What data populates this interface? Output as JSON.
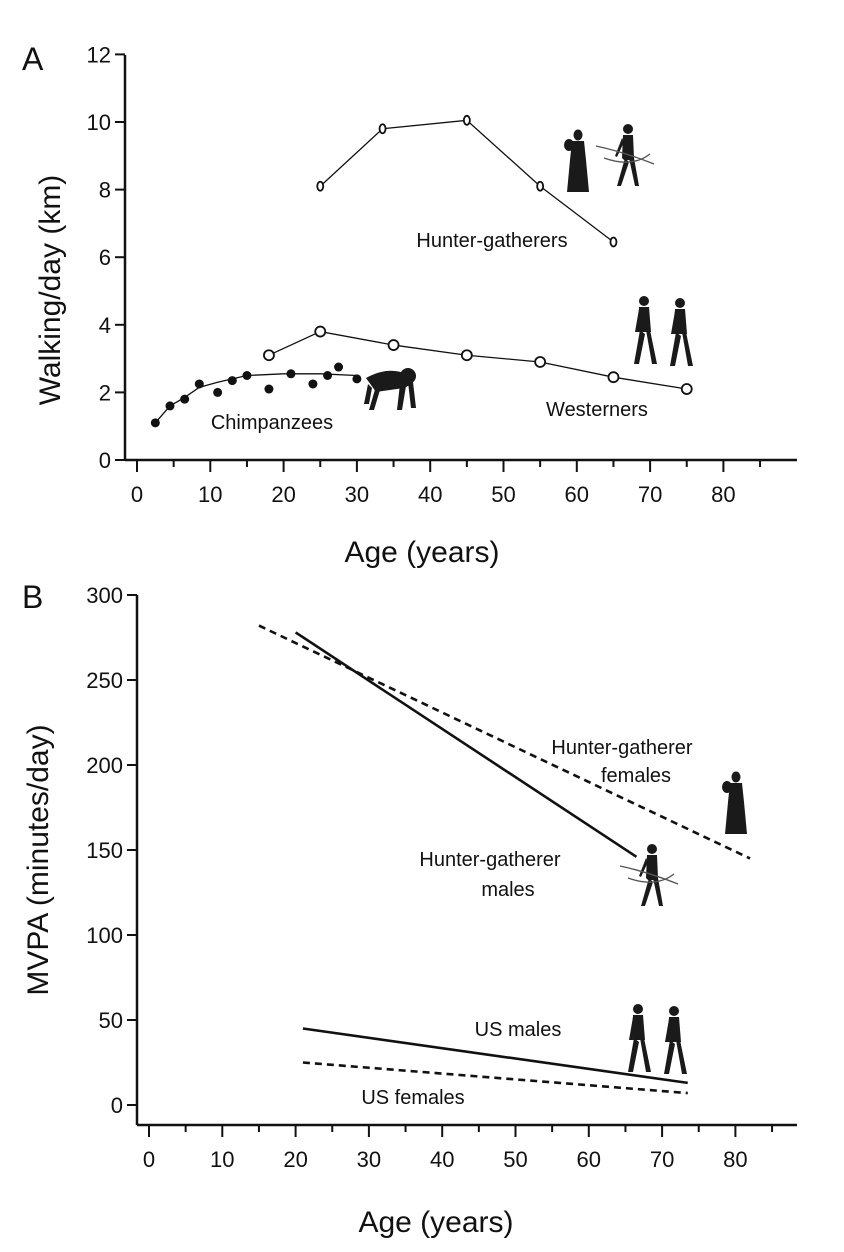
{
  "chart_data": [
    {
      "panel": "A",
      "type": "line",
      "xlabel": "Age (years)",
      "ylabel": "Walking/day (km)",
      "xlim": [
        0,
        90
      ],
      "ylim": [
        0,
        12
      ],
      "x_ticks": [
        0,
        10,
        20,
        30,
        40,
        50,
        60,
        70,
        80
      ],
      "y_ticks": [
        0,
        2,
        4,
        6,
        8,
        10,
        12
      ],
      "series": [
        {
          "name": "Hunter-gatherers",
          "marker": "open-small",
          "x": [
            25,
            33.5,
            45,
            55,
            65
          ],
          "y": [
            8.1,
            9.8,
            10.05,
            8.1,
            6.45
          ]
        },
        {
          "name": "Westerners",
          "marker": "open-circle",
          "x": [
            18,
            25,
            35,
            45,
            55,
            65,
            75
          ],
          "y": [
            3.1,
            3.8,
            3.4,
            3.1,
            2.9,
            2.45,
            2.1
          ]
        },
        {
          "name": "Chimpanzees",
          "marker": "filled-circle",
          "x": [
            2.5,
            4.5,
            6.5,
            8.5,
            11,
            13,
            15,
            18,
            21,
            24,
            26,
            27.5,
            30
          ],
          "y": [
            1.1,
            1.6,
            1.8,
            2.25,
            2.0,
            2.35,
            2.5,
            2.1,
            2.55,
            2.25,
            2.5,
            2.75,
            2.4
          ],
          "fit_x": [
            2.5,
            4.5,
            6.5,
            8.5,
            11,
            15,
            20,
            25,
            30
          ],
          "fit_y": [
            1.1,
            1.6,
            1.85,
            2.15,
            2.3,
            2.5,
            2.55,
            2.55,
            2.5
          ]
        }
      ]
    },
    {
      "panel": "B",
      "type": "line",
      "xlabel": "Age (years)",
      "ylabel": "MVPA (minutes/day)",
      "xlim": [
        -2,
        90
      ],
      "ylim": [
        -12,
        300
      ],
      "x_ticks": [
        0,
        10,
        20,
        30,
        40,
        50,
        60,
        70,
        80
      ],
      "y_ticks": [
        0,
        50,
        100,
        150,
        200,
        250,
        300
      ],
      "series": [
        {
          "name": "Hunter-gatherer females",
          "style": "dashed",
          "x": [
            15,
            82
          ],
          "y": [
            282,
            145
          ]
        },
        {
          "name": "Hunter-gatherer males",
          "style": "solid",
          "x": [
            20,
            66.5
          ],
          "y": [
            278,
            146
          ]
        },
        {
          "name": "US males",
          "style": "solid",
          "x": [
            21,
            73.5
          ],
          "y": [
            45,
            13
          ]
        },
        {
          "name": "US females",
          "style": "dashed",
          "x": [
            21,
            73.5
          ],
          "y": [
            25,
            7
          ]
        }
      ]
    }
  ],
  "panels": {
    "a": {
      "letter": "A",
      "labels": {
        "hunter_gatherers": "Hunter-gatherers",
        "westerners": "Westerners",
        "chimpanzees": "Chimpanzees"
      }
    },
    "b": {
      "letter": "B",
      "labels": {
        "hg_females_line1": "Hunter-gatherer",
        "hg_females_line2": "females",
        "hg_males_line1": "Hunter-gatherer",
        "hg_males_line2": "males",
        "us_males": "US males",
        "us_females": "US females"
      }
    }
  },
  "icons": [
    "hunter-gatherer-woman-icon",
    "hunter-gatherer-man-icon",
    "westerner-couple-icon",
    "chimpanzee-icon"
  ]
}
